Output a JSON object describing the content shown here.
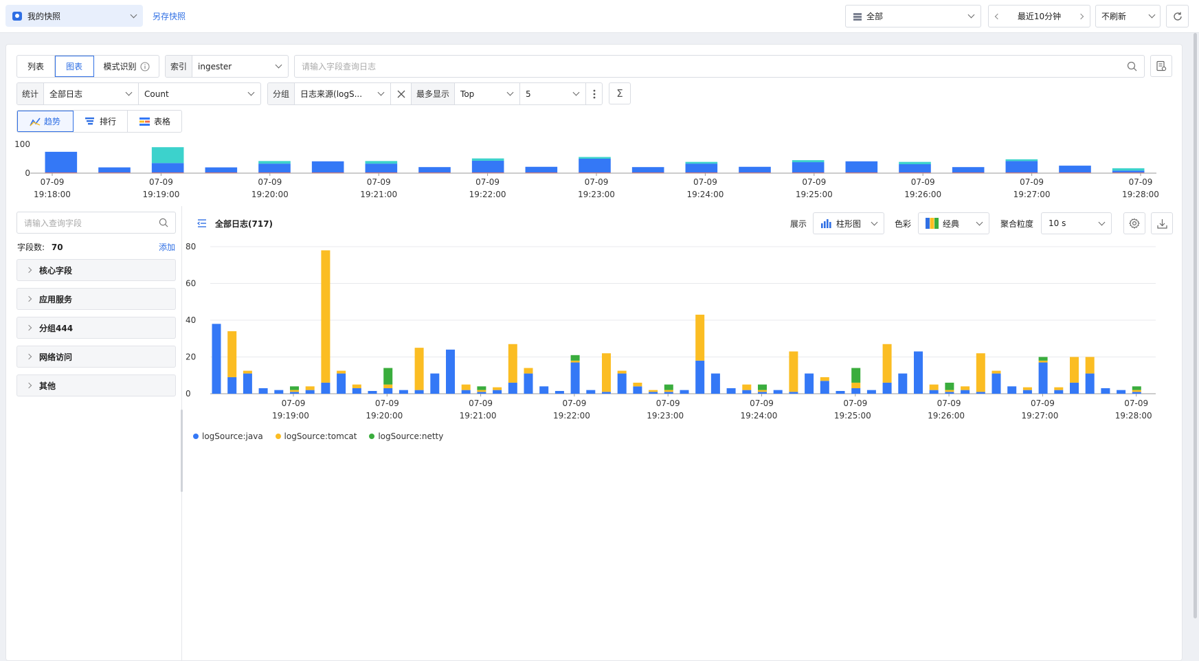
{
  "topbar": {
    "snapshot_select": "我的快照",
    "save_snapshot": "另存快照",
    "scope_select": "全部",
    "time_range": "最近10分钟",
    "refresh_select": "不刷新"
  },
  "query": {
    "view_tabs": [
      "列表",
      "图表",
      "模式识别"
    ],
    "active_tab": "图表",
    "index_label": "索引",
    "index_value": "ingester",
    "search_placeholder": "请输入字段查询日志"
  },
  "stats": {
    "stat_label": "统计",
    "stat_scope": "全部日志",
    "stat_func": "Count",
    "group_label": "分组",
    "group_value": "日志来源(logS...",
    "max_label": "最多显示",
    "top_select": "Top",
    "top_n": "5",
    "sigma": "Σ"
  },
  "chart_tabs": [
    "趋势",
    "排行",
    "表格"
  ],
  "sidebar": {
    "search_placeholder": "请输入查询字段",
    "field_count_label": "字段数:",
    "field_count": "70",
    "add_label": "添加",
    "groups": [
      "核心字段",
      "应用服务",
      "分组444",
      "网络访问",
      "其他"
    ]
  },
  "main_header": {
    "title": "全部日志",
    "count": "(717)",
    "display_label": "展示",
    "display_value": "柱形图",
    "color_label": "色彩",
    "color_value": "经典",
    "agg_label": "聚合粒度",
    "agg_value": "10 s"
  },
  "colors": {
    "accent": "#2f6fe4",
    "java": "#3478f6",
    "tomcat": "#fbbd23",
    "netty": "#3aad3d",
    "overview_top": "#3cd2cc"
  },
  "chart_data": [
    {
      "type": "bar",
      "name": "overview",
      "stacked": true,
      "ylim": [
        0,
        100
      ],
      "y_ticks": [
        0,
        100
      ],
      "x_tick_labels": [
        [
          "07-09",
          "19:18:00"
        ],
        [
          "07-09",
          "19:19:00"
        ],
        [
          "07-09",
          "19:20:00"
        ],
        [
          "07-09",
          "19:21:00"
        ],
        [
          "07-09",
          "19:22:00"
        ],
        [
          "07-09",
          "19:23:00"
        ],
        [
          "07-09",
          "19:24:00"
        ],
        [
          "07-09",
          "19:25:00"
        ],
        [
          "07-09",
          "19:26:00"
        ],
        [
          "07-09",
          "19:27:00"
        ],
        [
          "07-09",
          "19:28:00"
        ]
      ],
      "series": [
        {
          "values": [
            72,
            18,
            33,
            18,
            31,
            39,
            31,
            19,
            41,
            20,
            48,
            19,
            31,
            20,
            36,
            39,
            29,
            19,
            40,
            24,
            7
          ]
        },
        {
          "values": [
            0,
            0,
            55,
            0,
            9,
            0,
            9,
            0,
            8,
            0,
            6,
            0,
            6,
            0,
            7,
            0,
            8,
            0,
            6,
            0,
            8
          ]
        },
        {
          "values": [
            2,
            2,
            2,
            2,
            2,
            2,
            2,
            2,
            2,
            2,
            2,
            2,
            2,
            2,
            2,
            2,
            2,
            2,
            2,
            2,
            2
          ]
        }
      ]
    },
    {
      "type": "bar",
      "name": "main",
      "stacked": true,
      "ylim": [
        0,
        80
      ],
      "y_ticks": [
        0,
        20,
        40,
        60,
        80
      ],
      "x_tick_labels": [
        [
          "07-09",
          "19:19:00"
        ],
        [
          "07-09",
          "19:20:00"
        ],
        [
          "07-09",
          "19:21:00"
        ],
        [
          "07-09",
          "19:22:00"
        ],
        [
          "07-09",
          "19:23:00"
        ],
        [
          "07-09",
          "19:24:00"
        ],
        [
          "07-09",
          "19:25:00"
        ],
        [
          "07-09",
          "19:26:00"
        ],
        [
          "07-09",
          "19:27:00"
        ],
        [
          "07-09",
          "19:28:00"
        ]
      ],
      "series": [
        {
          "name": "logSource:java",
          "values": [
            38,
            9,
            11,
            3,
            2,
            1,
            2,
            6,
            11,
            3,
            1.5,
            3,
            2,
            2,
            11,
            24,
            2,
            1,
            2,
            6,
            11,
            4,
            1.5,
            17,
            2,
            1,
            11,
            4,
            1,
            1,
            2,
            18,
            11,
            3,
            2,
            1,
            2,
            1,
            11,
            7,
            1.5,
            3,
            2,
            6,
            11,
            23,
            2,
            1,
            2,
            1,
            11,
            4,
            2,
            17,
            2,
            6,
            11,
            3,
            2,
            1
          ]
        },
        {
          "name": "logSource:tomcat",
          "values": [
            0,
            25,
            1.5,
            0,
            0,
            1,
            2,
            72,
            1.5,
            2,
            0,
            2,
            0,
            23,
            0,
            0,
            3,
            1,
            1.5,
            21,
            3,
            0,
            0,
            1,
            0,
            21,
            1.5,
            2,
            1,
            1,
            0,
            25,
            0,
            0,
            3,
            1,
            0,
            22,
            0,
            2,
            0,
            3,
            0,
            21,
            0,
            0,
            3,
            1,
            2,
            21,
            1.5,
            0,
            1.5,
            1,
            1.5,
            14,
            9,
            0,
            0,
            1
          ]
        },
        {
          "name": "logSource:netty",
          "values": [
            0,
            0,
            0,
            0,
            0,
            2,
            0,
            0,
            0,
            0,
            0,
            9,
            0,
            0,
            0,
            0,
            0,
            2,
            0,
            0,
            0,
            0,
            0,
            3,
            0,
            0,
            0,
            0,
            0,
            3,
            0,
            0,
            0,
            0,
            0,
            3,
            0,
            0,
            0,
            0,
            0,
            8,
            0,
            0,
            0,
            0,
            0,
            4,
            0,
            0,
            0,
            0,
            0,
            2,
            0,
            0,
            0,
            0,
            0,
            2
          ]
        }
      ]
    }
  ]
}
